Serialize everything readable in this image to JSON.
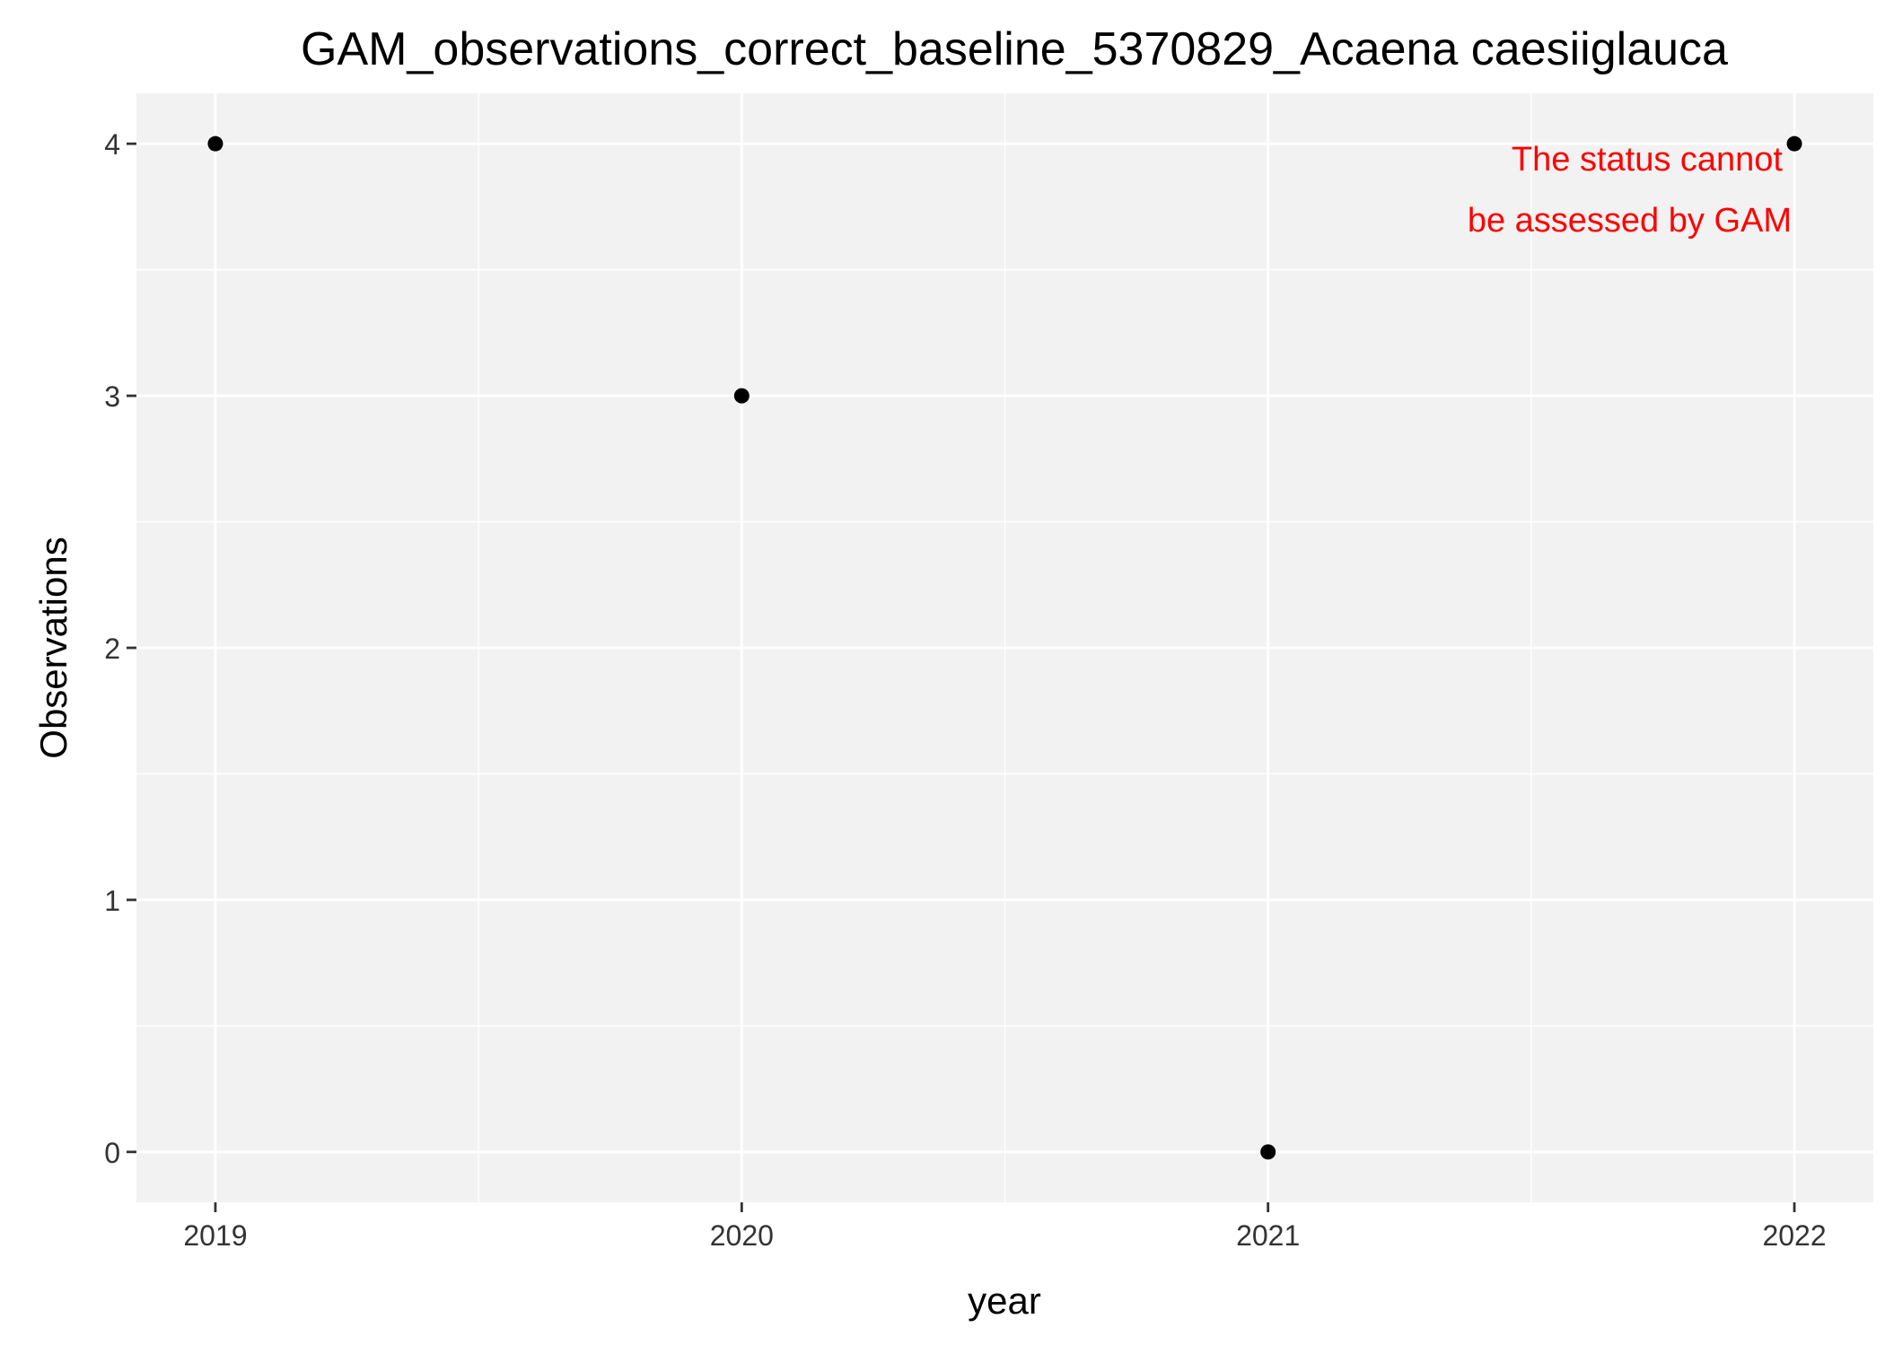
{
  "chart_data": {
    "type": "scatter",
    "title": "GAM_observations_correct_baseline_5370829_Acaena caesiiglauca",
    "xlabel": "year",
    "ylabel": "Observations",
    "x": [
      2019,
      2020,
      2021,
      2022
    ],
    "y": [
      4,
      3,
      0,
      4
    ],
    "xlim": [
      2018.85,
      2022.15
    ],
    "ylim": [
      -0.2,
      4.2
    ],
    "xticks": [
      "2019",
      "2020",
      "2021",
      "2022"
    ],
    "yticks": [
      "0",
      "1",
      "2",
      "3",
      "4"
    ],
    "grid": true,
    "annotation": {
      "lines": [
        "The status cannot",
        "be assessed by GAM"
      ],
      "color": "#ff0000"
    },
    "colors": {
      "panel_background": "#f2f2f2",
      "grid": "#ffffff",
      "points": "#000000"
    }
  }
}
